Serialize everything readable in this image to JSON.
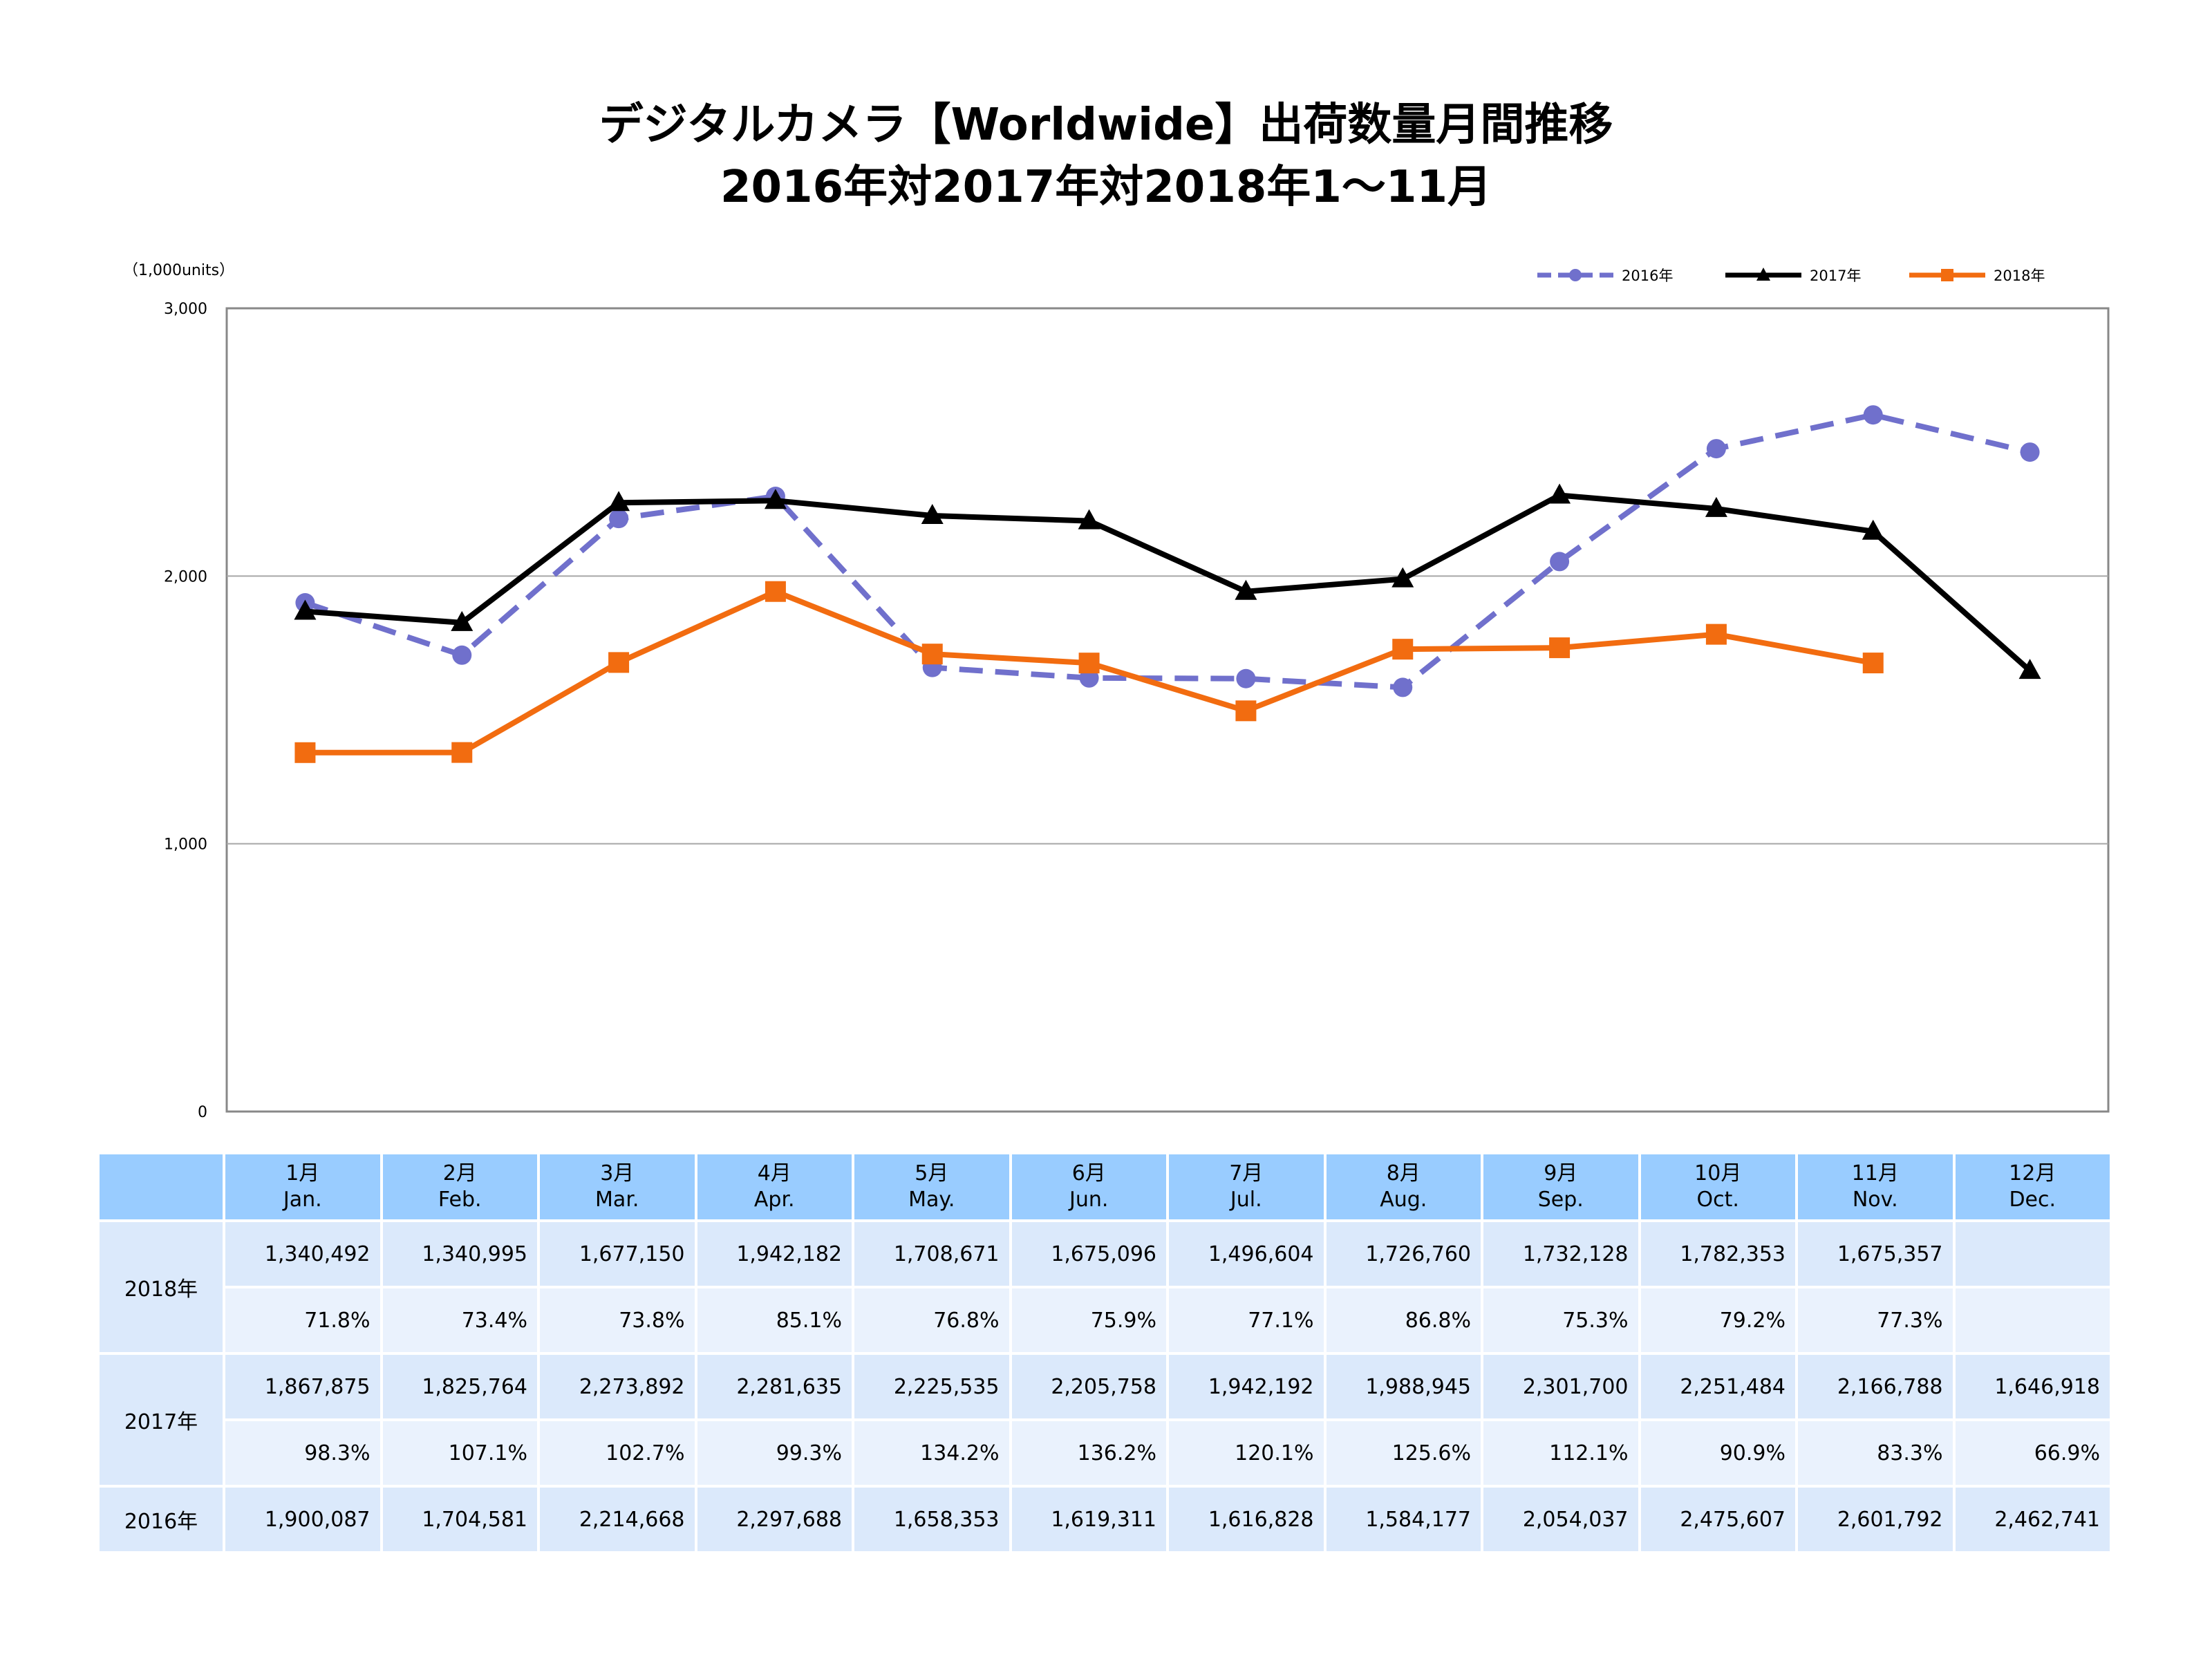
{
  "title_line1": "デジタルカメラ【Worldwide】出荷数量月間推移",
  "title_line2": "2016年対2017年対2018年1～11月",
  "chart_data": {
    "type": "line",
    "unit_label": "（1,000units）",
    "ylim": [
      0,
      3000
    ],
    "yticks": [
      "0",
      "1,000",
      "2,000",
      "3,000"
    ],
    "grid": true,
    "legend_placement": "top-right",
    "categories": [
      "1月",
      "2月",
      "3月",
      "4月",
      "5月",
      "6月",
      "7月",
      "8月",
      "9月",
      "10月",
      "11月",
      "12月"
    ],
    "series": [
      {
        "name": "2016年",
        "color": "#7070cc",
        "style": "dashed",
        "marker": "circle",
        "values": [
          1900.087,
          1704.581,
          2214.668,
          2297.688,
          1658.353,
          1619.311,
          1616.828,
          1584.177,
          2054.037,
          2475.607,
          2601.792,
          2462.741
        ]
      },
      {
        "name": "2017年",
        "color": "#000000",
        "style": "solid",
        "marker": "triangle",
        "values": [
          1867.875,
          1825.764,
          2273.892,
          2281.635,
          2225.535,
          2205.758,
          1942.192,
          1988.945,
          2301.7,
          2251.484,
          2166.788,
          1646.918
        ]
      },
      {
        "name": "2018年",
        "color": "#f26c10",
        "style": "solid",
        "marker": "square",
        "values": [
          1340.492,
          1340.995,
          1677.15,
          1942.182,
          1708.671,
          1675.096,
          1496.604,
          1726.76,
          1732.128,
          1782.353,
          1675.357,
          null
        ]
      }
    ]
  },
  "table": {
    "months": [
      [
        "1月",
        "Jan."
      ],
      [
        "2月",
        "Feb."
      ],
      [
        "3月",
        "Mar."
      ],
      [
        "4月",
        "Apr."
      ],
      [
        "5月",
        "May."
      ],
      [
        "6月",
        "Jun."
      ],
      [
        "7月",
        "Jul."
      ],
      [
        "8月",
        "Aug."
      ],
      [
        "9月",
        "Sep."
      ],
      [
        "10月",
        "Oct."
      ],
      [
        "11月",
        "Nov."
      ],
      [
        "12月",
        "Dec."
      ]
    ],
    "rows": [
      {
        "year": "2018年",
        "values": [
          "1,340,492",
          "1,340,995",
          "1,677,150",
          "1,942,182",
          "1,708,671",
          "1,675,096",
          "1,496,604",
          "1,726,760",
          "1,732,128",
          "1,782,353",
          "1,675,357",
          ""
        ],
        "pct": [
          "71.8%",
          "73.4%",
          "73.8%",
          "85.1%",
          "76.8%",
          "75.9%",
          "77.1%",
          "86.8%",
          "75.3%",
          "79.2%",
          "77.3%",
          ""
        ]
      },
      {
        "year": "2017年",
        "values": [
          "1,867,875",
          "1,825,764",
          "2,273,892",
          "2,281,635",
          "2,225,535",
          "2,205,758",
          "1,942,192",
          "1,988,945",
          "2,301,700",
          "2,251,484",
          "2,166,788",
          "1,646,918"
        ],
        "pct": [
          "98.3%",
          "107.1%",
          "102.7%",
          "99.3%",
          "134.2%",
          "136.2%",
          "120.1%",
          "125.6%",
          "112.1%",
          "90.9%",
          "83.3%",
          "66.9%"
        ]
      },
      {
        "year": "2016年",
        "values": [
          "1,900,087",
          "1,704,581",
          "2,214,668",
          "2,297,688",
          "1,658,353",
          "1,619,311",
          "1,616,828",
          "1,584,177",
          "2,054,037",
          "2,475,607",
          "2,601,792",
          "2,462,741"
        ]
      }
    ]
  }
}
